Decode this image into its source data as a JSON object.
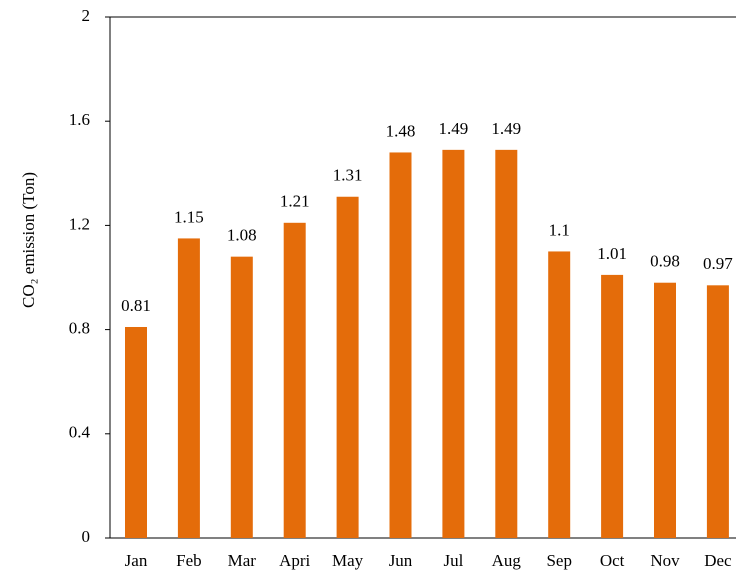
{
  "chart_data": {
    "type": "bar",
    "y_label": "CO₂ emission (Ton)",
    "categories": [
      "Jan",
      "Feb",
      "Mar",
      "Apri",
      "May",
      "Jun",
      "Jul",
      "Aug",
      "Sep",
      "Oct",
      "Nov",
      "Dec"
    ],
    "values": [
      0.81,
      1.15,
      1.08,
      1.21,
      1.31,
      1.48,
      1.49,
      1.49,
      1.1,
      1.01,
      0.98,
      0.97
    ],
    "color": "#e46c0a",
    "ylim": [
      0,
      2
    ],
    "yticks": [
      0,
      0.4,
      0.8,
      1.2,
      1.6,
      2
    ]
  }
}
